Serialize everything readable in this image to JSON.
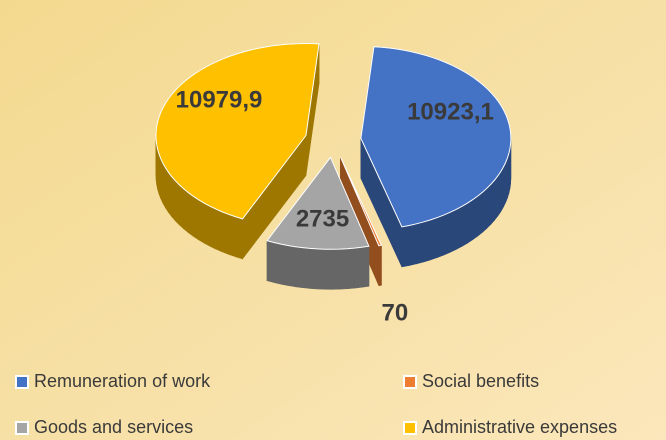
{
  "chart_data": {
    "type": "pie",
    "categories": [
      "Remuneration of work",
      "Social benefits",
      "Goods and services",
      "Administrative expenses"
    ],
    "values": [
      10923.1,
      70,
      2735,
      10979.9
    ],
    "value_labels": [
      "10923,1",
      "70",
      "2735",
      "10979,9"
    ],
    "colors": [
      "#4472c4",
      "#ed7d31",
      "#a5a5a5",
      "#ffc000"
    ],
    "legend": "bottom"
  }
}
